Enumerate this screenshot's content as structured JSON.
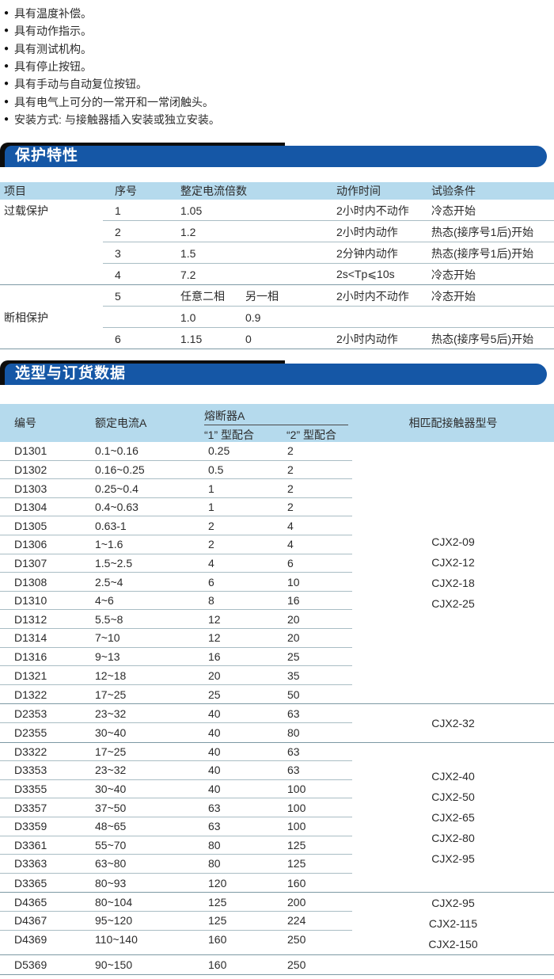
{
  "colors": {
    "bar_blue": "#1557a6",
    "bar_shadow": "#0d0d0d",
    "header_light_blue": "#b5daed",
    "row_line": "#a9bdc4",
    "group_line": "#7d99a4",
    "header_underline": "#4a4a4a",
    "text": "#2b2b2b",
    "bar_text": "#ffffff"
  },
  "features": {
    "bullet": "●",
    "items": [
      "具有温度补偿。",
      "具有动作指示。",
      "具有测试机构。",
      "具有停止按钮。",
      "具有手动与自动复位按钮。",
      "具有电气上可分的一常开和一常闭触头。",
      "安装方式: 与接触器插入安装或独立安装。"
    ]
  },
  "sections": {
    "protection": "保护特性",
    "selection": "选型与订货数据"
  },
  "protection_table": {
    "headers": {
      "item": "项目",
      "seq": "序号",
      "multiple": "整定电流倍数",
      "time": "动作时间",
      "condition": "试验条件"
    },
    "rows": [
      {
        "item": "过载保护",
        "seq": "1",
        "m1": "1.05",
        "m2": "",
        "time": "2小时内不动作",
        "cond": "冷态开始",
        "sep": "partial"
      },
      {
        "item": "",
        "seq": "2",
        "m1": "1.2",
        "m2": "",
        "time": "2小时内动作",
        "cond": "热态(接序号1后)开始",
        "sep": "partial"
      },
      {
        "item": "",
        "seq": "3",
        "m1": "1.5",
        "m2": "",
        "time": "2分钟内动作",
        "cond": "热态(接序号1后)开始",
        "sep": "partial"
      },
      {
        "item": "",
        "seq": "4",
        "m1": "7.2",
        "m2": "",
        "time": "2s<Tp⩽10s",
        "cond": "冷态开始",
        "sep": "full"
      },
      {
        "item": "",
        "seq": "5",
        "m1": "任意二相",
        "m2": "另一相",
        "time": "2小时内不动作",
        "cond": "冷态开始",
        "sep": "partial"
      },
      {
        "item": "断相保护",
        "seq": "",
        "m1": "1.0",
        "m2": "0.9",
        "time": "",
        "cond": "",
        "sep": "partial"
      },
      {
        "item": "",
        "seq": "6",
        "m1": "1.15",
        "m2": "0",
        "time": "2小时内动作",
        "cond": "热态(接序号5后)开始",
        "sep": "full"
      }
    ]
  },
  "selection_table": {
    "headers": {
      "model": "编号",
      "current": "额定电流A",
      "fuse": "熔断器A",
      "fuse1": "“1” 型配合",
      "fuse2": "“2” 型配合",
      "contactor": "相匹配接触器型号"
    },
    "rows": [
      {
        "model": "D1301",
        "current": "0.1~0.16",
        "fuse1": "0.25",
        "fuse2": "2"
      },
      {
        "model": "D1302",
        "current": "0.16~0.25",
        "fuse1": "0.5",
        "fuse2": "2"
      },
      {
        "model": "D1303",
        "current": "0.25~0.4",
        "fuse1": "1",
        "fuse2": "2"
      },
      {
        "model": "D1304",
        "current": "0.4~0.63",
        "fuse1": "1",
        "fuse2": "2"
      },
      {
        "model": "D1305",
        "current": "0.63-1",
        "fuse1": "2",
        "fuse2": "4"
      },
      {
        "model": "D1306",
        "current": "1~1.6",
        "fuse1": "2",
        "fuse2": "4"
      },
      {
        "model": "D1307",
        "current": "1.5~2.5",
        "fuse1": "4",
        "fuse2": "6"
      },
      {
        "model": "D1308",
        "current": "2.5~4",
        "fuse1": "6",
        "fuse2": "10"
      },
      {
        "model": "D1310",
        "current": "4~6",
        "fuse1": "8",
        "fuse2": "16"
      },
      {
        "model": "D1312",
        "current": "5.5~8",
        "fuse1": "12",
        "fuse2": "20"
      },
      {
        "model": "D1314",
        "current": "7~10",
        "fuse1": "12",
        "fuse2": "20"
      },
      {
        "model": "D1316",
        "current": "9~13",
        "fuse1": "16",
        "fuse2": "25"
      },
      {
        "model": "D1321",
        "current": "12~18",
        "fuse1": "20",
        "fuse2": "35"
      },
      {
        "model": "D1322",
        "current": "17~25",
        "fuse1": "25",
        "fuse2": "50"
      },
      {
        "model": "D2353",
        "current": "23~32",
        "fuse1": "40",
        "fuse2": "63"
      },
      {
        "model": "D2355",
        "current": "30~40",
        "fuse1": "40",
        "fuse2": "80"
      },
      {
        "model": "D3322",
        "current": "17~25",
        "fuse1": "40",
        "fuse2": "63"
      },
      {
        "model": "D3353",
        "current": "23~32",
        "fuse1": "40",
        "fuse2": "63"
      },
      {
        "model": "D3355",
        "current": "30~40",
        "fuse1": "40",
        "fuse2": "100"
      },
      {
        "model": "D3357",
        "current": "37~50",
        "fuse1": "63",
        "fuse2": "100"
      },
      {
        "model": "D3359",
        "current": "48~65",
        "fuse1": "63",
        "fuse2": "100"
      },
      {
        "model": "D3361",
        "current": "55~70",
        "fuse1": "80",
        "fuse2": "125"
      },
      {
        "model": "D3363",
        "current": "63~80",
        "fuse1": "80",
        "fuse2": "125"
      },
      {
        "model": "D3365",
        "current": "80~93",
        "fuse1": "120",
        "fuse2": "160"
      },
      {
        "model": "D4365",
        "current": "80~104",
        "fuse1": "125",
        "fuse2": "200"
      },
      {
        "model": "D4367",
        "current": "95~120",
        "fuse1": "125",
        "fuse2": "224"
      },
      {
        "model": "D4369",
        "current": "110~140",
        "fuse1": "160",
        "fuse2": "250"
      },
      {
        "model": "D5369",
        "current": "90~150",
        "fuse1": "160",
        "fuse2": "250"
      }
    ],
    "groups": [
      {
        "start": 0,
        "count": 14,
        "contactors": [
          "CJX2-09",
          "CJX2-12",
          "CJX2-18",
          "CJX2-25"
        ]
      },
      {
        "start": 14,
        "count": 2,
        "contactors": [
          "CJX2-32"
        ]
      },
      {
        "start": 16,
        "count": 8,
        "contactors": [
          "CJX2-40",
          "CJX2-50",
          "CJX2-65",
          "CJX2-80",
          "CJX2-95"
        ]
      },
      {
        "start": 24,
        "count": 3,
        "contactors": [
          "CJX2-95",
          "CJX2-115",
          "CJX2-150"
        ]
      },
      {
        "start": 27,
        "count": 1,
        "contactors": []
      }
    ]
  }
}
